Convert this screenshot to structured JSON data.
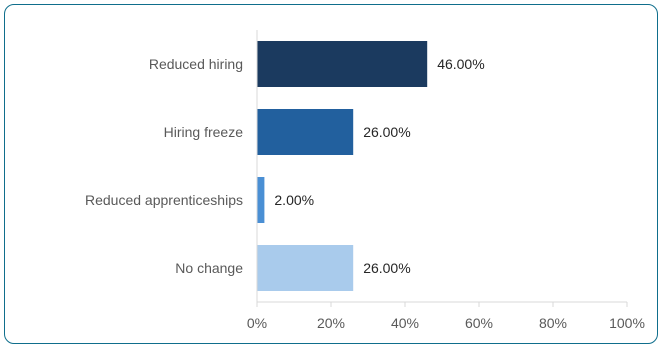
{
  "chart_data": {
    "type": "bar",
    "orientation": "horizontal",
    "categories": [
      "Reduced hiring",
      "Hiring freeze",
      "Reduced apprenticeships",
      "No change"
    ],
    "values": [
      46,
      26,
      2,
      26
    ],
    "data_labels": [
      "46.00%",
      "26.00%",
      "2.00%",
      "26.00%"
    ],
    "bar_colors": [
      "#1b3a5f",
      "#22609e",
      "#4a8fd4",
      "#a9cbec"
    ],
    "xlim": [
      0,
      100
    ],
    "xticks": [
      0,
      20,
      40,
      60,
      80,
      100
    ],
    "xtick_labels": [
      "0%",
      "20%",
      "40%",
      "60%",
      "80%",
      "100%"
    ],
    "grid": false,
    "legend": "none"
  },
  "colors": {
    "frame": "#0f6e8c",
    "axis": "#d9d9d9"
  }
}
